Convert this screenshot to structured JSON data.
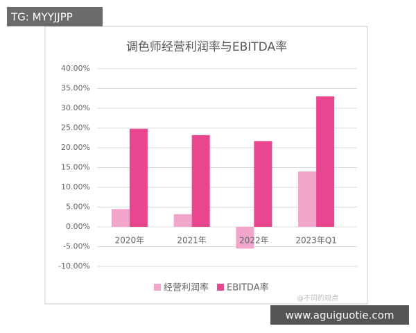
{
  "overlay": {
    "tag": "TG: MYYJJPP",
    "site": "www.aguiguotie.com",
    "watermark": "@不同的观点"
  },
  "chart_data": {
    "type": "bar",
    "title": "调色师经营利润率与EBITDA率",
    "categories": [
      "2020年",
      "2021年",
      "2022年",
      "2023年Q1"
    ],
    "series": [
      {
        "name": "经营利润率",
        "color": "#f3a6cc",
        "values": [
          4.5,
          3.2,
          -5.5,
          14
        ]
      },
      {
        "name": "EBITDA率",
        "color": "#e8468f",
        "values": [
          24.8,
          23.2,
          21.7,
          33
        ]
      }
    ],
    "ylim": [
      -10,
      40
    ],
    "yticks": [
      {
        "value": -10,
        "label": "-10.00%"
      },
      {
        "value": -5,
        "label": "-5.00%"
      },
      {
        "value": 0,
        "label": "0.00%"
      },
      {
        "value": 5,
        "label": "5.00%"
      },
      {
        "value": 10,
        "label": "10.00%"
      },
      {
        "value": 15,
        "label": "15.00%"
      },
      {
        "value": 20,
        "label": "20.00%"
      },
      {
        "value": 25,
        "label": "25.00%"
      },
      {
        "value": 30,
        "label": "30.00%"
      },
      {
        "value": 35,
        "label": "35.00%"
      },
      {
        "value": 40,
        "label": "40.00%"
      }
    ],
    "grid": true,
    "legend": "bottom"
  }
}
